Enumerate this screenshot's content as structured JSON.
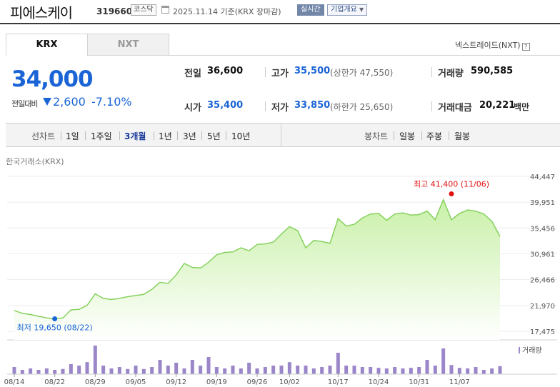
{
  "header": {
    "company_name": "피에스케이",
    "stock_code": "319660",
    "market_badge": "코스닥",
    "base_date": "2025.11.14 기준(KRX 장마감)",
    "realtime_button": "실시간",
    "company_overview_button": "기업개요"
  },
  "tabs": [
    {
      "label": "KRX",
      "active": true
    },
    {
      "label": "NXT",
      "active": false
    }
  ],
  "nextrade_link": "넥스트레이드(NXT)",
  "nextrade_help_icon": "?",
  "price": {
    "current": "34,000",
    "change_label": "전일대비",
    "change_amount": "2,600",
    "change_rate": "-7.10%",
    "direction_icon": "down-triangle-icon"
  },
  "stats": {
    "prev_close_label": "전일",
    "prev_close": "36,600",
    "open_label": "시가",
    "open": "35,400",
    "high_label": "고가",
    "high": "35,500",
    "upper_limit": "(상한가 47,550)",
    "low_label": "저가",
    "low": "33,850",
    "lower_limit": "(하한가 25,650)",
    "volume_label": "거래량",
    "volume": "590,585",
    "amount_label": "거래대금",
    "amount": "20,221",
    "amount_unit": "백만"
  },
  "period_bar": {
    "line_chart_label": "선차트",
    "line_periods": [
      "1일",
      "1주일",
      "3개월",
      "1년",
      "3년",
      "5년",
      "10년"
    ],
    "active_period": "3개월",
    "candle_chart_label": "봉차트",
    "candle_periods": [
      "일봉",
      "주봉",
      "월봉"
    ]
  },
  "exchange_caption": "한국거래소(KRX)",
  "colors": {
    "price_blue": "#1a64d6",
    "line_green": "#86d15e",
    "area_green": "#c9f0a8",
    "volume_purple": "#9a86c9",
    "high_red": "#e01010",
    "low_blue": "#1a64d6"
  },
  "chart_data": {
    "type": "area",
    "y_ticks": [
      "44,447",
      "39,951",
      "35,456",
      "30,961",
      "26,466",
      "21,970",
      "17,475"
    ],
    "ylim": [
      17475,
      44447
    ],
    "x_tick_labels": [
      "08/14",
      "08/22",
      "08/29",
      "09/05",
      "09/12",
      "09/19",
      "09/26",
      "10/02",
      "10/17",
      "10/24",
      "10/31",
      "11/07"
    ],
    "dates": [
      "08/14",
      "08/18",
      "08/19",
      "08/20",
      "08/21",
      "08/22",
      "08/25",
      "08/26",
      "08/27",
      "08/28",
      "08/29",
      "09/01",
      "09/02",
      "09/03",
      "09/04",
      "09/05",
      "09/08",
      "09/09",
      "09/10",
      "09/11",
      "09/12",
      "09/15",
      "09/16",
      "09/17",
      "09/18",
      "09/19",
      "09/22",
      "09/23",
      "09/24",
      "09/25",
      "09/26",
      "09/29",
      "09/30",
      "10/01",
      "10/02",
      "10/10",
      "10/13",
      "10/14",
      "10/15",
      "10/16",
      "10/17",
      "10/20",
      "10/21",
      "10/22",
      "10/23",
      "10/24",
      "10/27",
      "10/28",
      "10/29",
      "10/30",
      "10/31",
      "11/03",
      "11/04",
      "11/05",
      "11/06",
      "11/07",
      "11/10",
      "11/11",
      "11/12",
      "11/13",
      "11/14"
    ],
    "close": [
      21100,
      20600,
      20400,
      20100,
      19800,
      19650,
      19800,
      21200,
      21300,
      22000,
      24000,
      23200,
      23000,
      23200,
      23500,
      23700,
      23900,
      24800,
      26000,
      25800,
      27300,
      29300,
      28600,
      28500,
      29500,
      30800,
      31200,
      31300,
      32000,
      31500,
      32600,
      32700,
      33000,
      34400,
      35700,
      35000,
      32000,
      33300,
      33100,
      32800,
      37100,
      35800,
      36100,
      37200,
      37900,
      38000,
      36800,
      37900,
      38100,
      37700,
      37800,
      38400,
      36900,
      40400,
      36900,
      38000,
      38600,
      38400,
      37900,
      36600,
      34000
    ],
    "volume_rel": [
      0.25,
      0.15,
      0.2,
      0.15,
      0.2,
      0.15,
      0.18,
      0.35,
      0.3,
      0.42,
      1.0,
      0.3,
      0.2,
      0.25,
      0.18,
      0.3,
      0.18,
      0.25,
      0.5,
      0.3,
      0.4,
      0.2,
      0.5,
      0.3,
      0.6,
      0.25,
      0.2,
      0.3,
      0.2,
      0.4,
      0.2,
      0.25,
      0.3,
      0.3,
      0.42,
      0.3,
      0.3,
      0.2,
      0.25,
      0.3,
      0.75,
      0.3,
      0.3,
      0.25,
      0.25,
      0.22,
      0.2,
      0.25,
      0.2,
      0.22,
      0.25,
      0.5,
      0.3,
      0.9,
      0.32,
      0.22,
      0.2,
      0.25,
      0.15,
      0.2,
      0.28
    ],
    "high_annotation": {
      "label": "최고 41,400 (11/06)",
      "value": 41400,
      "date": "11/06"
    },
    "low_annotation": {
      "label": "최저 19,650 (08/22)",
      "value": 19650,
      "date": "08/22"
    },
    "volume_legend": "거래량"
  }
}
